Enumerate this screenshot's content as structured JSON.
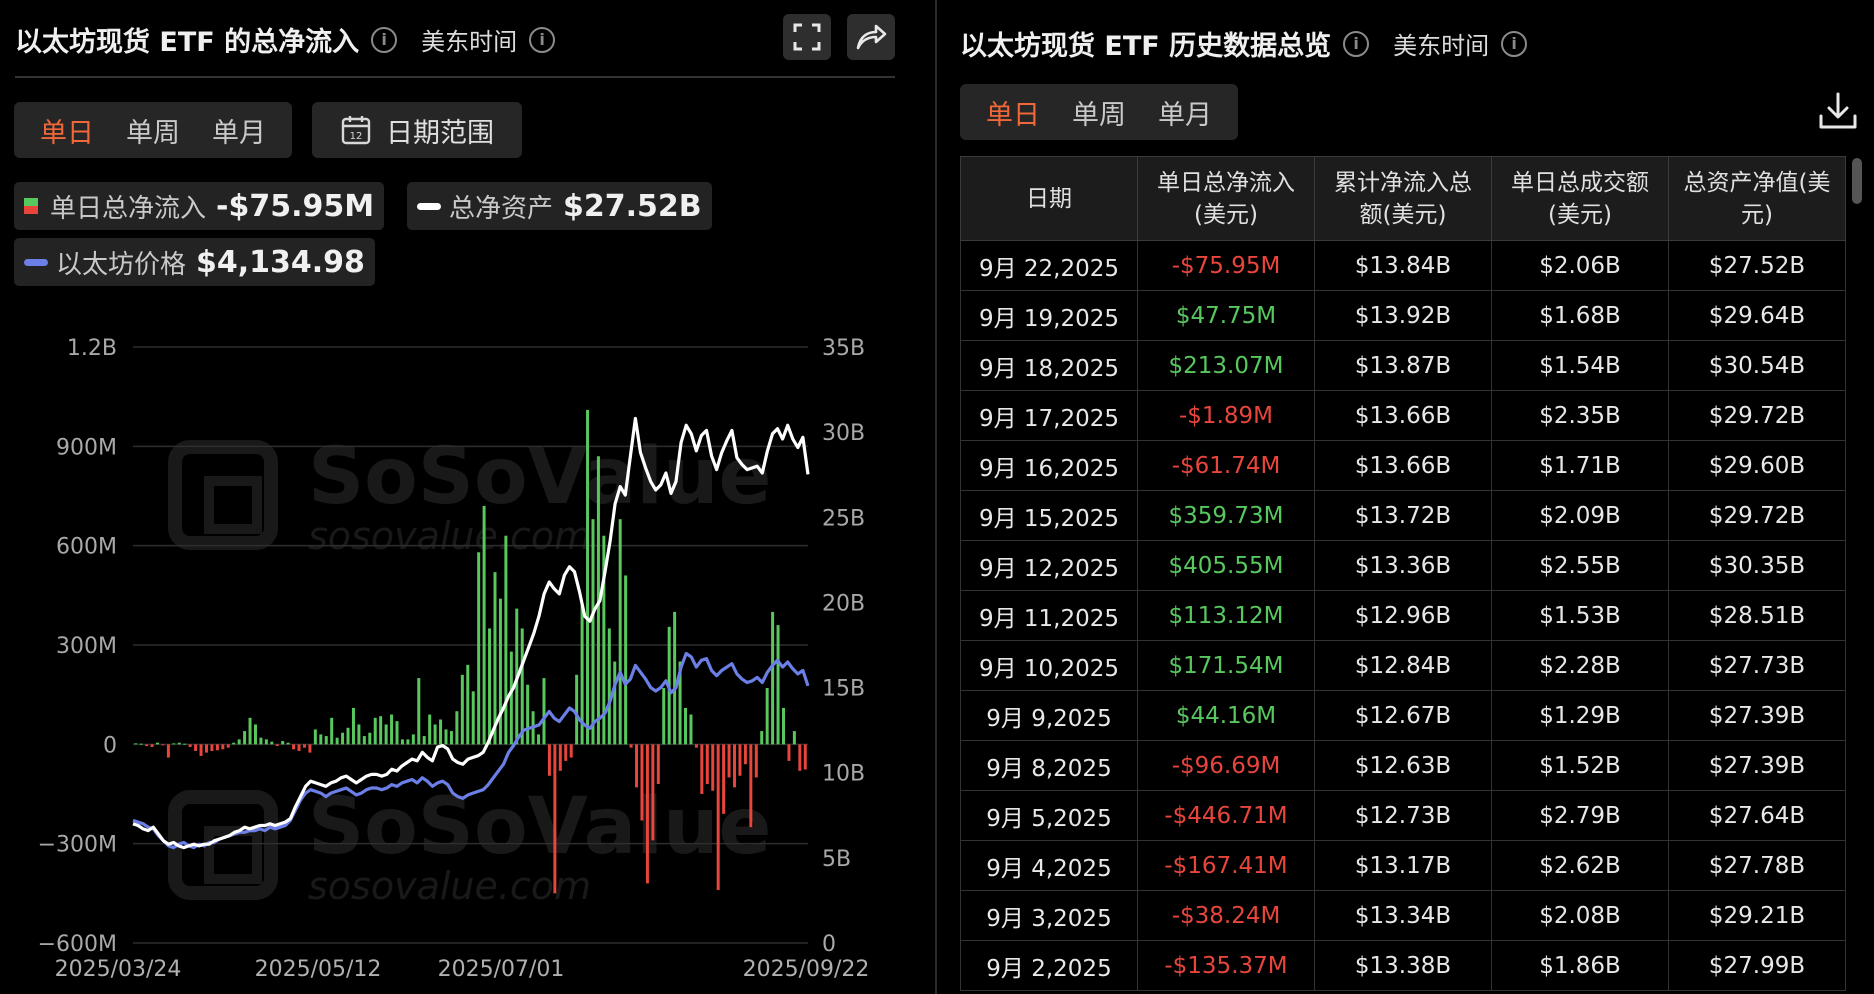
{
  "left_panel": {
    "title": "以太坊现货 ETF 的总净流入",
    "timezone": "美东时间",
    "period_tabs": [
      "单日",
      "单周",
      "单月"
    ],
    "active_tab": 0,
    "date_range_label": "日期范围",
    "calendar_day": "12",
    "legend": {
      "net_inflow_label": "单日总净流入",
      "net_inflow_value": "-$75.95M",
      "net_assets_label": "总净资产",
      "net_assets_value": "$27.52B",
      "eth_price_label": "以太坊价格",
      "eth_price_value": "$4,134.98"
    }
  },
  "watermark": {
    "brand": "SoSoValue",
    "site": "sosovalue.com"
  },
  "colors": {
    "accent": "#f0673a",
    "positive": "#58c85e",
    "negative": "#e8453c",
    "net_assets_line": "#ffffff",
    "price_line": "#6b7fe6"
  },
  "chart_data": {
    "type": "bar",
    "title": "",
    "x_ticks": [
      "2025/03/24",
      "2025/05/12",
      "2025/07/01",
      "2025/09/22"
    ],
    "left_axis": {
      "ticks": [
        "1.2B",
        "900M",
        "600M",
        "300M",
        "0",
        "−300M",
        "−600M"
      ],
      "ylim": [
        -600,
        1200
      ],
      "unit": "M USD"
    },
    "right_axis": {
      "ticks": [
        "35B",
        "30B",
        "25B",
        "20B",
        "15B",
        "10B",
        "5B",
        "0"
      ],
      "ylim": [
        0,
        35
      ],
      "unit": "B USD"
    },
    "series": [
      {
        "name": "单日总净流入",
        "kind": "bar",
        "values": [
          3,
          2,
          -5,
          -8,
          5,
          -2,
          -40,
          3,
          5,
          2,
          -8,
          -20,
          -35,
          -25,
          -20,
          -18,
          -15,
          -10,
          5,
          15,
          40,
          80,
          60,
          20,
          15,
          8,
          -5,
          10,
          5,
          -15,
          -20,
          -10,
          -25,
          45,
          30,
          25,
          80,
          20,
          35,
          50,
          110,
          60,
          25,
          35,
          80,
          85,
          60,
          90,
          70,
          15,
          15,
          30,
          200,
          25,
          90,
          60,
          75,
          45,
          40,
          100,
          210,
          240,
          160,
          580,
          720,
          350,
          520,
          440,
          630,
          280,
          410,
          350,
          180,
          100,
          30,
          200,
          -95,
          -450,
          -80,
          -50,
          -40,
          210,
          420,
          1010,
          680,
          870,
          630,
          350,
          250,
          680,
          510,
          -10,
          -130,
          -230,
          -420,
          -290,
          -120,
          170,
          355,
          400,
          250,
          110,
          90,
          -10,
          -150,
          -120,
          -140,
          -440,
          -210,
          -100,
          -130,
          -95,
          -60,
          -250,
          -100,
          40,
          170,
          400,
          360,
          110,
          -50,
          40,
          -80,
          -75.95
        ]
      },
      {
        "name": "总净资产",
        "kind": "line",
        "axis": "right",
        "values": [
          7.0,
          6.9,
          6.7,
          6.6,
          6.8,
          6.4,
          6.0,
          5.8,
          5.9,
          5.7,
          5.6,
          5.7,
          5.8,
          5.7,
          5.8,
          5.8,
          6.0,
          6.1,
          6.2,
          6.3,
          6.5,
          6.6,
          6.8,
          6.7,
          6.8,
          6.9,
          6.9,
          7.0,
          6.9,
          7.0,
          7.1,
          7.3,
          8.0,
          8.6,
          9.2,
          9.5,
          9.4,
          9.3,
          9.2,
          9.4,
          9.5,
          9.7,
          9.8,
          9.6,
          9.4,
          9.6,
          9.8,
          9.9,
          9.9,
          9.8,
          9.9,
          10.2,
          10.1,
          10.4,
          10.6,
          10.8,
          10.7,
          11.2,
          10.9,
          10.7,
          11.5,
          11.6,
          11.4,
          10.8,
          10.6,
          10.5,
          10.8,
          10.9,
          11.0,
          11.2,
          11.8,
          12.5,
          13.2,
          13.8,
          14.5,
          15.0,
          15.8,
          16.6,
          17.4,
          18.2,
          19.2,
          20.5,
          21.2,
          20.8,
          20.5,
          21.6,
          22.1,
          21.8,
          20.6,
          19.2,
          18.9,
          19.6,
          20.1,
          21.8,
          23.6,
          25.8,
          26.8,
          26.3,
          28.6,
          30.8,
          28.8,
          27.9,
          27.1,
          26.6,
          26.9,
          27.6,
          26.4,
          27.1,
          29.4,
          30.4,
          29.9,
          28.9,
          29.8,
          30.1,
          28.6,
          27.8,
          28.8,
          29.5,
          30.1,
          28.5,
          28.1,
          27.8,
          27.9,
          28.0,
          27.6,
          28.9,
          29.9,
          30.2,
          29.6,
          30.4,
          29.6,
          29.1,
          29.7,
          27.52
        ]
      },
      {
        "name": "以太坊价格",
        "kind": "line",
        "axis": "right",
        "values": [
          7.2,
          7.1,
          7.0,
          6.8,
          6.7,
          6.3,
          6.0,
          5.7,
          5.6,
          5.8,
          5.9,
          5.7,
          5.6,
          5.8,
          5.7,
          5.9,
          5.9,
          6.1,
          6.2,
          6.3,
          6.4,
          6.5,
          6.5,
          6.6,
          6.6,
          6.7,
          6.6,
          6.8,
          6.7,
          6.8,
          6.9,
          7.2,
          7.8,
          8.4,
          8.8,
          9.0,
          8.9,
          8.8,
          8.6,
          8.8,
          8.9,
          9.0,
          9.1,
          8.9,
          8.7,
          8.8,
          9.0,
          9.1,
          9.1,
          9.0,
          9.1,
          9.3,
          9.2,
          9.4,
          9.5,
          9.6,
          9.4,
          9.7,
          9.5,
          9.2,
          9.4,
          9.5,
          9.3,
          8.8,
          8.6,
          8.5,
          8.7,
          8.8,
          8.9,
          9.0,
          9.3,
          9.7,
          10.1,
          10.5,
          11.2,
          11.6,
          12.1,
          12.5,
          12.6,
          12.7,
          12.8,
          13.2,
          13.6,
          13.2,
          13.0,
          13.4,
          13.8,
          13.6,
          13.1,
          12.8,
          12.6,
          13.0,
          13.2,
          13.5,
          14.2,
          15.2,
          15.9,
          15.2,
          15.5,
          16.3,
          15.9,
          15.5,
          15.0,
          14.8,
          15.0,
          15.4,
          14.7,
          15.0,
          16.2,
          17.0,
          16.8,
          16.2,
          16.6,
          16.7,
          16.0,
          15.7,
          16.0,
          16.2,
          16.4,
          15.8,
          15.5,
          15.3,
          15.4,
          15.6,
          15.3,
          15.9,
          16.3,
          16.6,
          16.2,
          16.5,
          16.1,
          15.8,
          16.0,
          15.1
        ]
      }
    ],
    "grid": true
  },
  "right_panel": {
    "title": "以太坊现货 ETF 历史数据总览",
    "timezone": "美东时间",
    "period_tabs": [
      "单日",
      "单周",
      "单月"
    ],
    "active_tab": 0,
    "columns": [
      "日期",
      "单日总净流入(美元)",
      "累计净流入总额(美元)",
      "单日总成交额(美元)",
      "总资产净值(美元)"
    ],
    "column_lines": [
      [
        "日期"
      ],
      [
        "单日总净流入",
        "(美元)"
      ],
      [
        "累计净流入总",
        "额(美元)"
      ],
      [
        "单日总成交额",
        "(美元)"
      ],
      [
        "总资产净值(美",
        "元)"
      ]
    ],
    "rows": [
      {
        "date": "9月 22,2025",
        "net": "-$75.95M",
        "sign": "neg",
        "cum": "$13.84B",
        "vol": "$2.06B",
        "nav": "$27.52B"
      },
      {
        "date": "9月 19,2025",
        "net": "$47.75M",
        "sign": "pos",
        "cum": "$13.92B",
        "vol": "$1.68B",
        "nav": "$29.64B"
      },
      {
        "date": "9月 18,2025",
        "net": "$213.07M",
        "sign": "pos",
        "cum": "$13.87B",
        "vol": "$1.54B",
        "nav": "$30.54B"
      },
      {
        "date": "9月 17,2025",
        "net": "-$1.89M",
        "sign": "neg",
        "cum": "$13.66B",
        "vol": "$2.35B",
        "nav": "$29.72B"
      },
      {
        "date": "9月 16,2025",
        "net": "-$61.74M",
        "sign": "neg",
        "cum": "$13.66B",
        "vol": "$1.71B",
        "nav": "$29.60B"
      },
      {
        "date": "9月 15,2025",
        "net": "$359.73M",
        "sign": "pos",
        "cum": "$13.72B",
        "vol": "$2.09B",
        "nav": "$29.72B"
      },
      {
        "date": "9月 12,2025",
        "net": "$405.55M",
        "sign": "pos",
        "cum": "$13.36B",
        "vol": "$2.55B",
        "nav": "$30.35B"
      },
      {
        "date": "9月 11,2025",
        "net": "$113.12M",
        "sign": "pos",
        "cum": "$12.96B",
        "vol": "$1.53B",
        "nav": "$28.51B"
      },
      {
        "date": "9月 10,2025",
        "net": "$171.54M",
        "sign": "pos",
        "cum": "$12.84B",
        "vol": "$2.28B",
        "nav": "$27.73B"
      },
      {
        "date": "9月 9,2025",
        "net": "$44.16M",
        "sign": "pos",
        "cum": "$12.67B",
        "vol": "$1.29B",
        "nav": "$27.39B"
      },
      {
        "date": "9月 8,2025",
        "net": "-$96.69M",
        "sign": "neg",
        "cum": "$12.63B",
        "vol": "$1.52B",
        "nav": "$27.39B"
      },
      {
        "date": "9月 5,2025",
        "net": "-$446.71M",
        "sign": "neg",
        "cum": "$12.73B",
        "vol": "$2.79B",
        "nav": "$27.64B"
      },
      {
        "date": "9月 4,2025",
        "net": "-$167.41M",
        "sign": "neg",
        "cum": "$13.17B",
        "vol": "$2.62B",
        "nav": "$27.78B"
      },
      {
        "date": "9月 3,2025",
        "net": "-$38.24M",
        "sign": "neg",
        "cum": "$13.34B",
        "vol": "$2.08B",
        "nav": "$29.21B"
      },
      {
        "date": "9月 2,2025",
        "net": "-$135.37M",
        "sign": "neg",
        "cum": "$13.38B",
        "vol": "$1.86B",
        "nav": "$27.99B"
      }
    ]
  }
}
